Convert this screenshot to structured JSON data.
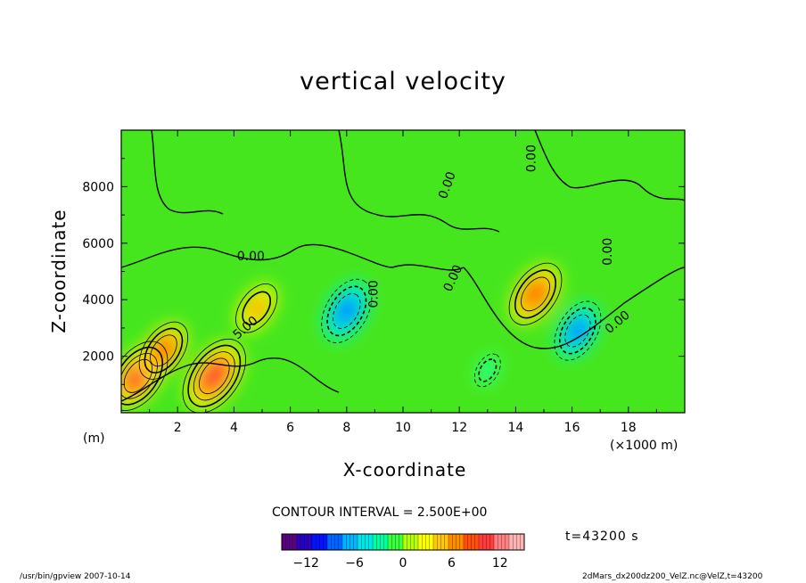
{
  "chart_data": {
    "type": "heatmap",
    "title": "vertical velocity",
    "xlabel": "X-coordinate",
    "ylabel": "Z-coordinate",
    "x_unit_left": "(m)",
    "x_unit_right": "(×1000 m)",
    "xlim": [
      0,
      20
    ],
    "ylim": [
      0,
      10000
    ],
    "x_ticks": [
      "2",
      "4",
      "6",
      "8",
      "10",
      "12",
      "14",
      "16",
      "18"
    ],
    "y_ticks": [
      "2000",
      "4000",
      "6000",
      "8000"
    ],
    "contour_interval_label": "CONTOUR INTERVAL = 2.500E+00",
    "contour_labels": [
      "0.00",
      "0.00",
      "0.00",
      "0.00",
      "0.00",
      "0.00",
      "0.00",
      "5.00"
    ],
    "colorbar": {
      "range": [
        -15,
        15
      ],
      "tick_labels": [
        "−12",
        "−6",
        "0",
        "6",
        "12"
      ],
      "colors": [
        "#5a0080",
        "#2800c0",
        "#0014ff",
        "#0064ff",
        "#00b4ff",
        "#00e6e6",
        "#00ffa0",
        "#3cff3c",
        "#b4ff00",
        "#ffff00",
        "#ffc800",
        "#ff8c00",
        "#ff5000",
        "#ff3c3c",
        "#ff8080",
        "#ffb4b4"
      ]
    },
    "features": [
      {
        "kind": "updraft",
        "x": 0.6,
        "z": 1300,
        "peak": 10
      },
      {
        "kind": "updraft",
        "x": 1.5,
        "z": 2200,
        "peak": 8
      },
      {
        "kind": "updraft",
        "x": 3.3,
        "z": 1300,
        "peak": 11
      },
      {
        "kind": "updraft",
        "x": 4.8,
        "z": 3700,
        "peak": 7
      },
      {
        "kind": "downdraft",
        "x": 8.0,
        "z": 3600,
        "peak": -9
      },
      {
        "kind": "updraft",
        "x": 14.7,
        "z": 4200,
        "peak": 9
      },
      {
        "kind": "downdraft",
        "x": 16.2,
        "z": 2900,
        "peak": -8
      },
      {
        "kind": "downdraft",
        "x": 13.0,
        "z": 1500,
        "peak": -3
      }
    ],
    "time_label": "t=43200 s"
  },
  "footer": {
    "left": "/usr/bin/gpview   2007-10-14",
    "right": "2dMars_dx200dz200_VelZ.nc@VelZ,t=43200"
  }
}
